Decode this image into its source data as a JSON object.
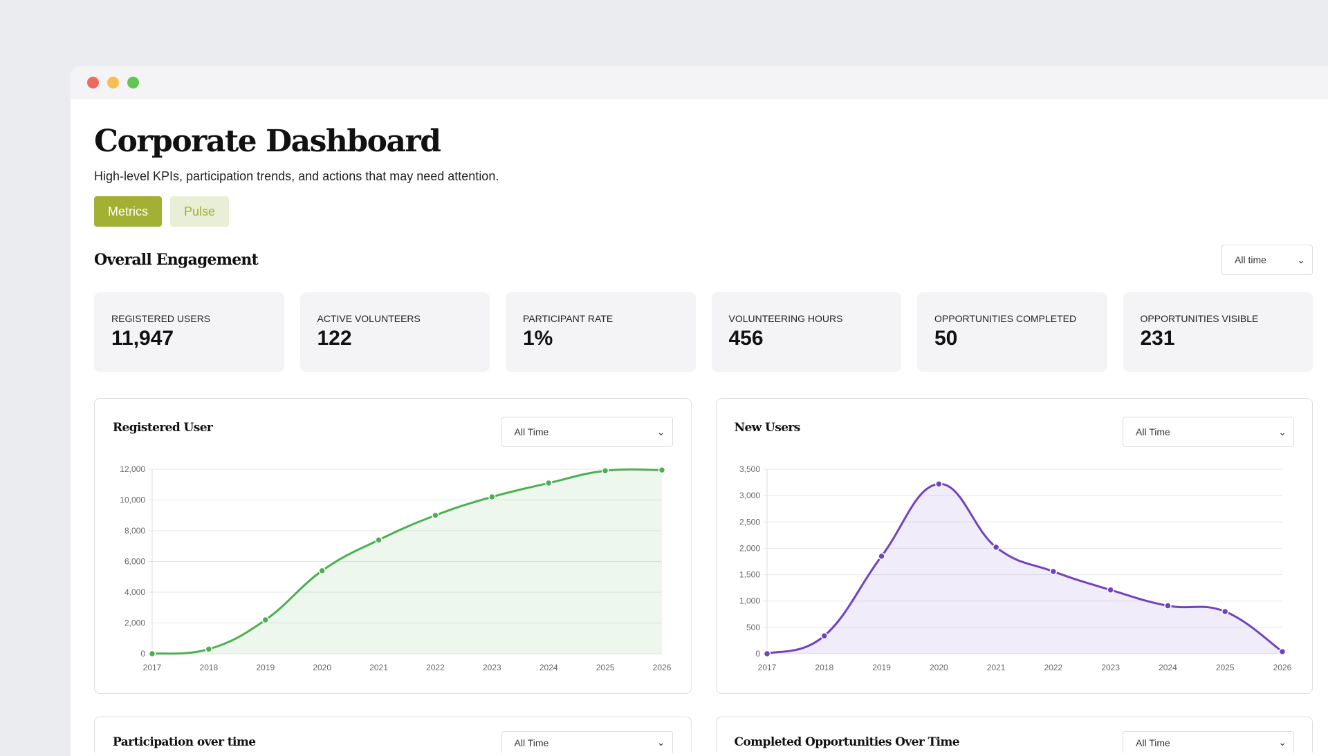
{
  "header": {
    "title": "Corporate Dashboard",
    "subtitle": "High-level KPIs, participation trends, and actions that may need attention."
  },
  "tabs": [
    {
      "label": "Metrics",
      "active": true
    },
    {
      "label": "Pulse",
      "active": false
    }
  ],
  "engagement": {
    "title": "Overall Engagement",
    "filter": "All time",
    "kpis": [
      {
        "label": "REGISTERED USERS",
        "value": "11,947"
      },
      {
        "label": "ACTIVE VOLUNTEERS",
        "value": "122"
      },
      {
        "label": "PARTICIPANT RATE",
        "value": "1%"
      },
      {
        "label": "VOLUNTEERING HOURS",
        "value": "456"
      },
      {
        "label": "OPPORTUNITIES COMPLETED",
        "value": "50"
      },
      {
        "label": "OPPORTUNITIES VISIBLE",
        "value": "231"
      }
    ]
  },
  "colors": {
    "accent": "#a2b033",
    "green": "#4caf50",
    "purple": "#6f42c1"
  },
  "chart_data": [
    {
      "type": "area",
      "title": "Registered User",
      "filter": "All Time",
      "categories": [
        "2017",
        "2018",
        "2019",
        "2020",
        "2021",
        "2022",
        "2023",
        "2024",
        "2025",
        "2026"
      ],
      "values": [
        0,
        300,
        2200,
        5400,
        7400,
        9000,
        10200,
        11100,
        11900,
        11947
      ],
      "ylim": [
        0,
        12000
      ],
      "yticks": [
        "0",
        "2,000",
        "4,000",
        "6,000",
        "8,000",
        "10,000",
        "12,000"
      ],
      "grid": true,
      "color": "#4caf50"
    },
    {
      "type": "area",
      "title": "New Users",
      "filter": "All Time",
      "categories": [
        "2017",
        "2018",
        "2019",
        "2020",
        "2021",
        "2022",
        "2023",
        "2024",
        "2025",
        "2026"
      ],
      "values": [
        0,
        340,
        1850,
        3220,
        2020,
        1560,
        1210,
        910,
        800,
        40
      ],
      "ylim": [
        0,
        3500
      ],
      "yticks": [
        "0",
        "500",
        "1,000",
        "1,500",
        "2,000",
        "2,500",
        "3,000",
        "3,500"
      ],
      "grid": true,
      "color": "#6f42c1"
    }
  ],
  "lower": [
    {
      "title": "Participation over time",
      "filter": "All Time"
    },
    {
      "title": "Completed Opportunities Over Time",
      "filter": "All Time"
    }
  ]
}
